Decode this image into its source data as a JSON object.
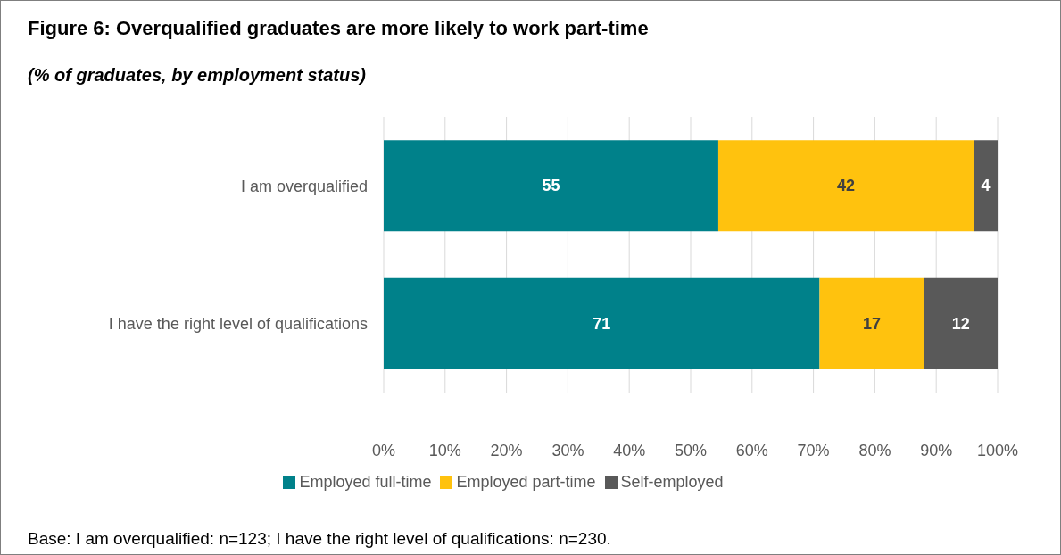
{
  "chart_data": {
    "type": "bar",
    "orientation": "horizontal",
    "stacked": true,
    "title": "Figure 6: Overqualified graduates are more likely to work part-time",
    "subtitle": "(% of graduates, by employment status)",
    "categories": [
      "I am overqualified",
      "I have the right level of qualifications"
    ],
    "series": [
      {
        "name": "Employed full-time",
        "color": "#00818a",
        "values": [
          54.5,
          71
        ],
        "value_labels": [
          "55",
          "71"
        ]
      },
      {
        "name": "Employed part-time",
        "color": "#ffc20e",
        "values": [
          41.6,
          17
        ],
        "value_labels": [
          "42",
          "17"
        ]
      },
      {
        "name": "Self-employed",
        "color": "#595959",
        "values": [
          3.9,
          12
        ],
        "value_labels": [
          "4",
          "12"
        ]
      }
    ],
    "xlim": [
      0,
      100
    ],
    "xticks": [
      {
        "value": 0,
        "label": "0%"
      },
      {
        "value": 10,
        "label": "10%"
      },
      {
        "value": 20,
        "label": "20%"
      },
      {
        "value": 30,
        "label": "30%"
      },
      {
        "value": 40,
        "label": "40%"
      },
      {
        "value": 50,
        "label": "50%"
      },
      {
        "value": 60,
        "label": "60%"
      },
      {
        "value": 70,
        "label": "70%"
      },
      {
        "value": 80,
        "label": "80%"
      },
      {
        "value": 90,
        "label": "90%"
      },
      {
        "value": 100,
        "label": "100%"
      }
    ],
    "grid": "x",
    "legend": "bottom",
    "annotations": [
      "Base: I am overqualified: n=123; I have the right level of qualifications: n=230."
    ]
  }
}
